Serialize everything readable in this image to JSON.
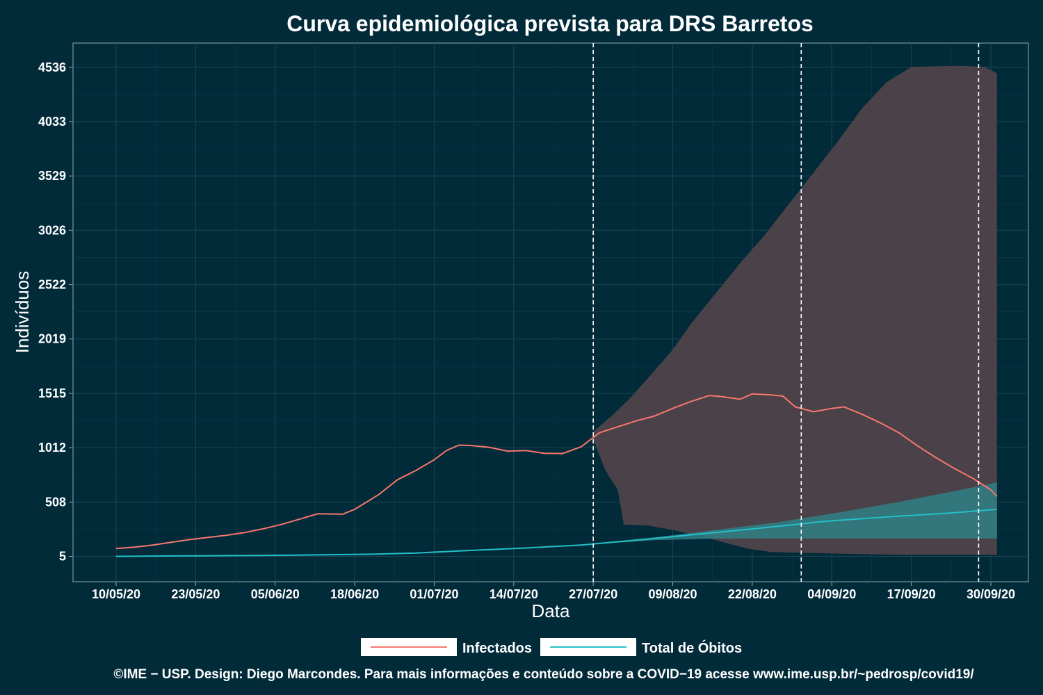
{
  "chart_data": {
    "type": "line",
    "title": "Curva epidemiológica prevista para DRS Barretos",
    "xlabel": "Data",
    "ylabel": "Indivíduos",
    "x_start": "2020-05-10",
    "x_end": "2020-09-30",
    "ylim": [
      -230,
      4760
    ],
    "y_ticks": [
      "5",
      "508",
      "1012",
      "1515",
      "2019",
      "2522",
      "3026",
      "3529",
      "4033",
      "4536"
    ],
    "x_ticks": [
      {
        "date": "2020-05-10",
        "label": "10/05/20"
      },
      {
        "date": "2020-05-23",
        "label": "23/05/20"
      },
      {
        "date": "2020-06-05",
        "label": "05/06/20"
      },
      {
        "date": "2020-06-18",
        "label": "18/06/20"
      },
      {
        "date": "2020-07-01",
        "label": "01/07/20"
      },
      {
        "date": "2020-07-14",
        "label": "14/07/20"
      },
      {
        "date": "2020-07-27",
        "label": "27/07/20"
      },
      {
        "date": "2020-08-09",
        "label": "09/08/20"
      },
      {
        "date": "2020-08-22",
        "label": "22/08/20"
      },
      {
        "date": "2020-09-04",
        "label": "04/09/20"
      },
      {
        "date": "2020-09-17",
        "label": "17/09/20"
      },
      {
        "date": "2020-09-30",
        "label": "30/09/20"
      }
    ],
    "vlines": [
      "2020-07-27",
      "2020-08-30",
      "2020-09-28"
    ],
    "grid": true,
    "legend_position": "bottom",
    "series": [
      {
        "name": "Infectados",
        "color": "#f8766d",
        "points": [
          [
            "2020-05-10",
            77
          ],
          [
            "2020-05-13",
            90
          ],
          [
            "2020-05-16",
            110
          ],
          [
            "2020-05-19",
            135
          ],
          [
            "2020-05-22",
            160
          ],
          [
            "2020-05-25",
            180
          ],
          [
            "2020-05-28",
            200
          ],
          [
            "2020-05-31",
            225
          ],
          [
            "2020-06-03",
            260
          ],
          [
            "2020-06-06",
            300
          ],
          [
            "2020-06-09",
            350
          ],
          [
            "2020-06-12",
            400
          ],
          [
            "2020-06-16",
            395
          ],
          [
            "2020-06-18",
            440
          ],
          [
            "2020-06-20",
            510
          ],
          [
            "2020-06-22",
            580
          ],
          [
            "2020-06-25",
            715
          ],
          [
            "2020-06-28",
            800
          ],
          [
            "2020-07-01",
            900
          ],
          [
            "2020-07-03",
            985
          ],
          [
            "2020-07-05",
            1035
          ],
          [
            "2020-07-07",
            1032
          ],
          [
            "2020-07-10",
            1015
          ],
          [
            "2020-07-13",
            980
          ],
          [
            "2020-07-16",
            985
          ],
          [
            "2020-07-19",
            960
          ],
          [
            "2020-07-22",
            958
          ],
          [
            "2020-07-25",
            1020
          ],
          [
            "2020-07-28",
            1150
          ],
          [
            "2020-07-31",
            1205
          ],
          [
            "2020-08-03",
            1260
          ],
          [
            "2020-08-06",
            1305
          ],
          [
            "2020-08-09",
            1375
          ],
          [
            "2020-08-12",
            1440
          ],
          [
            "2020-08-15",
            1495
          ],
          [
            "2020-08-17",
            1485
          ],
          [
            "2020-08-20",
            1460
          ],
          [
            "2020-08-22",
            1510
          ],
          [
            "2020-08-25",
            1500
          ],
          [
            "2020-08-27",
            1490
          ],
          [
            "2020-08-29",
            1390
          ],
          [
            "2020-09-01",
            1345
          ],
          [
            "2020-09-04",
            1375
          ],
          [
            "2020-09-06",
            1390
          ],
          [
            "2020-09-09",
            1320
          ],
          [
            "2020-09-12",
            1240
          ],
          [
            "2020-09-15",
            1150
          ],
          [
            "2020-09-18",
            1030
          ],
          [
            "2020-09-21",
            920
          ],
          [
            "2020-09-24",
            820
          ],
          [
            "2020-09-27",
            730
          ],
          [
            "2020-09-30",
            620
          ],
          [
            "2020-10-01",
            560
          ]
        ]
      },
      {
        "name": "Total de Óbitos",
        "color": "#22c0c8",
        "points": [
          [
            "2020-05-10",
            5
          ],
          [
            "2020-05-24",
            10
          ],
          [
            "2020-06-07",
            15
          ],
          [
            "2020-06-21",
            25
          ],
          [
            "2020-06-28",
            35
          ],
          [
            "2020-07-05",
            55
          ],
          [
            "2020-07-15",
            80
          ],
          [
            "2020-07-25",
            110
          ],
          [
            "2020-08-04",
            160
          ],
          [
            "2020-08-14",
            215
          ],
          [
            "2020-08-24",
            270
          ],
          [
            "2020-09-03",
            330
          ],
          [
            "2020-09-13",
            370
          ],
          [
            "2020-09-23",
            405
          ],
          [
            "2020-10-01",
            440
          ]
        ]
      }
    ],
    "bands": [
      {
        "name": "Infectados",
        "color": "#4a4248",
        "upper": [
          [
            "2020-07-27",
            1160
          ],
          [
            "2020-07-30",
            1305
          ],
          [
            "2020-08-02",
            1470
          ],
          [
            "2020-08-05",
            1660
          ],
          [
            "2020-08-09",
            1920
          ],
          [
            "2020-08-12",
            2160
          ],
          [
            "2020-08-16",
            2440
          ],
          [
            "2020-08-20",
            2720
          ],
          [
            "2020-08-24",
            2980
          ],
          [
            "2020-08-28",
            3270
          ],
          [
            "2020-09-01",
            3560
          ],
          [
            "2020-09-05",
            3850
          ],
          [
            "2020-09-09",
            4160
          ],
          [
            "2020-09-13",
            4400
          ],
          [
            "2020-09-17",
            4540
          ],
          [
            "2020-09-21",
            4545
          ],
          [
            "2020-09-25",
            4550
          ],
          [
            "2020-09-29",
            4540
          ],
          [
            "2020-10-01",
            4480
          ]
        ],
        "lower": [
          [
            "2020-07-27",
            1090
          ],
          [
            "2020-07-29",
            800
          ],
          [
            "2020-07-31",
            620
          ],
          [
            "2020-08-01",
            300
          ],
          [
            "2020-08-05",
            290
          ],
          [
            "2020-08-09",
            250
          ],
          [
            "2020-08-13",
            200
          ],
          [
            "2020-08-17",
            140
          ],
          [
            "2020-08-21",
            80
          ],
          [
            "2020-08-25",
            45
          ],
          [
            "2020-09-01",
            35
          ],
          [
            "2020-09-09",
            25
          ],
          [
            "2020-09-17",
            20
          ],
          [
            "2020-09-25",
            20
          ],
          [
            "2020-10-01",
            20
          ]
        ]
      },
      {
        "name": "Total de Óbitos",
        "color": "#2f7f86",
        "upper": [
          [
            "2020-07-27",
            122
          ],
          [
            "2020-08-06",
            180
          ],
          [
            "2020-08-16",
            250
          ],
          [
            "2020-08-26",
            320
          ],
          [
            "2020-09-05",
            410
          ],
          [
            "2020-09-15",
            510
          ],
          [
            "2020-09-25",
            620
          ],
          [
            "2020-10-01",
            690
          ]
        ],
        "lower": [
          [
            "2020-07-27",
            118
          ],
          [
            "2020-08-06",
            155
          ],
          [
            "2020-08-16",
            170
          ],
          [
            "2020-08-26",
            170
          ],
          [
            "2020-09-05",
            170
          ],
          [
            "2020-09-15",
            170
          ],
          [
            "2020-09-25",
            170
          ],
          [
            "2020-10-01",
            170
          ]
        ]
      }
    ]
  },
  "footer": {
    "credit": "©IME − USP. Design: Diego Marcondes. Para mais informações e conteúdo sobre a COVID−19 acesse www.ime.usp.br/~pedrosp/covid19/"
  },
  "colors": {
    "background": "#022b3a",
    "grid_major": "#1c4654",
    "grid_minor": "#123a48",
    "axis": "#8fa9b2",
    "vline": "#ffffff"
  }
}
